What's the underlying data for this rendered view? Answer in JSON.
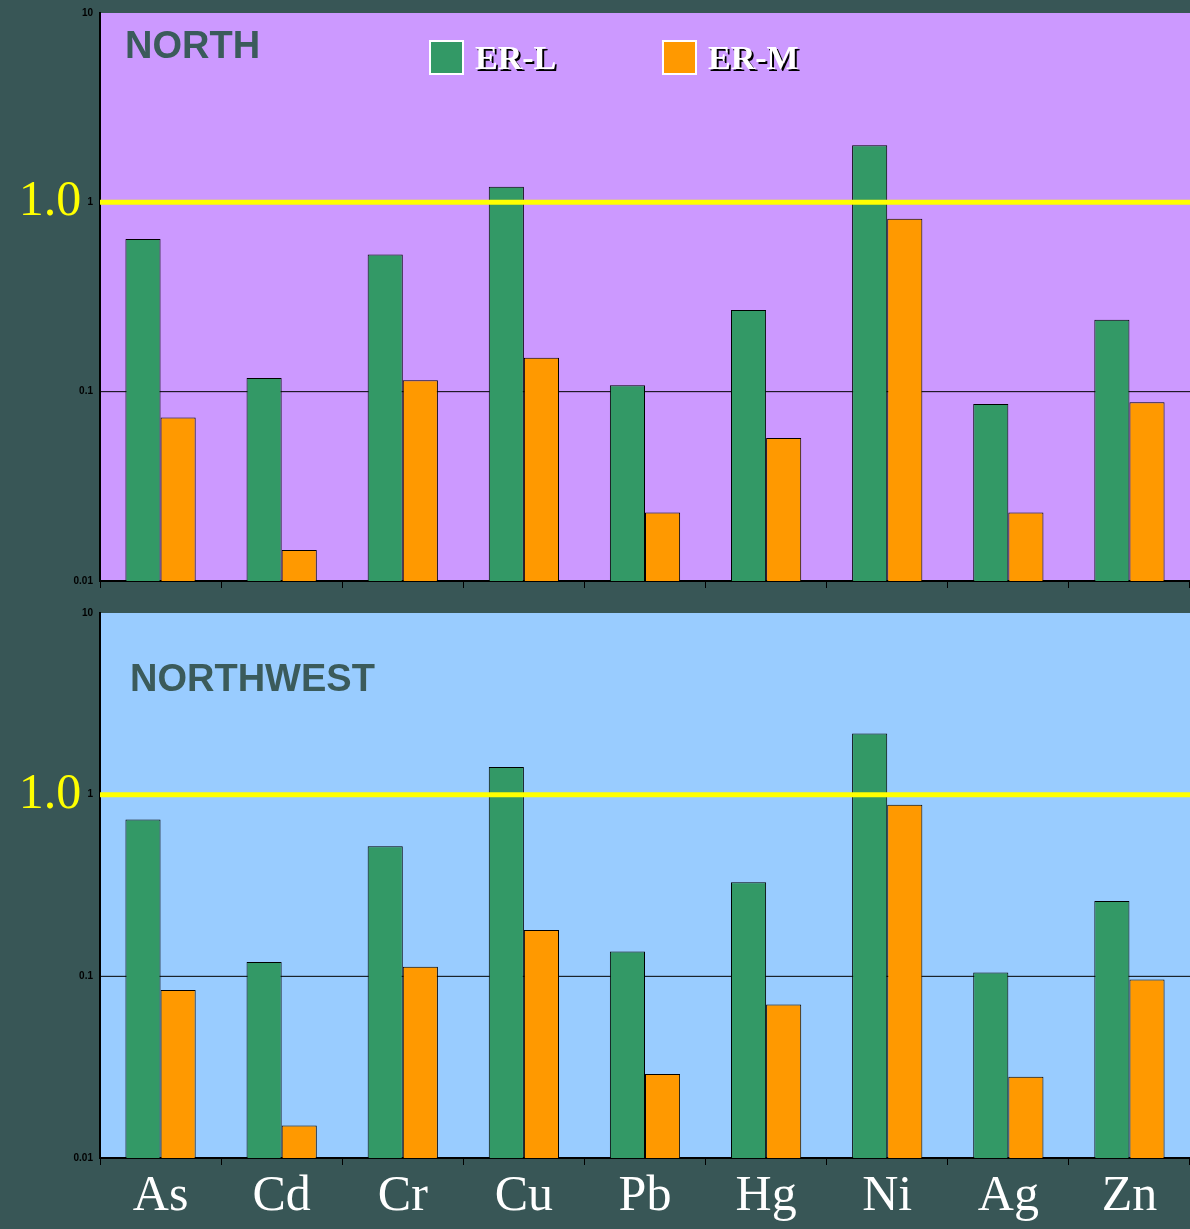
{
  "chart_data": [
    {
      "type": "bar",
      "title": "NORTH",
      "categories": [
        null,
        null,
        null,
        null,
        null,
        null,
        null,
        null,
        null
      ],
      "series": [
        {
          "name": "ER-L",
          "color": "#339966",
          "values": [
            0.64,
            0.118,
            0.53,
            1.21,
            0.108,
            0.27,
            2.0,
            0.086,
            0.24
          ]
        },
        {
          "name": "ER-M",
          "color": "#ff9900",
          "values": [
            0.073,
            0.0146,
            0.115,
            0.151,
            0.023,
            0.057,
            0.82,
            0.023,
            0.088
          ]
        }
      ],
      "ylim": [
        0.01,
        10
      ],
      "yticks": [
        0.01,
        0.1,
        1,
        10
      ],
      "log": true,
      "legend": "top",
      "tick_labels": "y",
      "ref_lines": [
        {
          "axis": "y",
          "value": 1,
          "label": "1.0",
          "color": "#ffff00"
        },
        {
          "axis": "y",
          "value": 0.1,
          "color": "#000000"
        }
      ]
    },
    {
      "type": "bar",
      "title": "NORTHWEST",
      "categories": [
        "As",
        "Cd",
        "Cr",
        "Cu",
        "Pb",
        "Hg",
        "Ni",
        "Ag",
        "Zn"
      ],
      "series": [
        {
          "color": "#339966",
          "values": [
            0.73,
            0.12,
            0.52,
            1.42,
            0.137,
            0.33,
            2.17,
            0.105,
            0.26
          ]
        },
        {
          "color": "#ff9900",
          "values": [
            0.084,
            0.0151,
            0.113,
            0.18,
            0.029,
            0.07,
            0.88,
            0.028,
            0.096
          ]
        }
      ],
      "ylim": [
        0.01,
        10
      ],
      "yticks": [
        0.01,
        0.1,
        1,
        10
      ],
      "log": true,
      "ref_lines": [
        {
          "axis": "y",
          "value": 1,
          "label": "1.0",
          "color": "#ffff00"
        },
        {
          "axis": "y",
          "value": 0.1,
          "color": "#000000"
        }
      ]
    }
  ]
}
